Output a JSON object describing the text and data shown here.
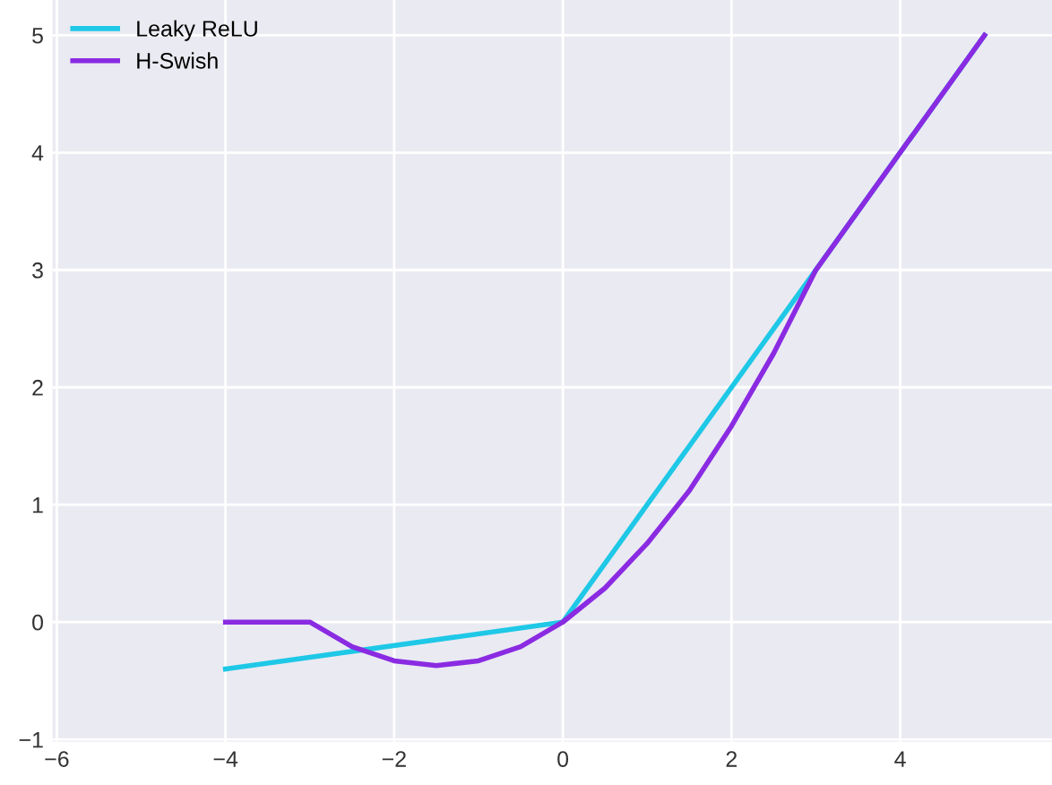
{
  "chart_data": {
    "type": "line",
    "xlim": [
      -6.05,
      5.8
    ],
    "ylim": [
      -1.02,
      5.3
    ],
    "xticks": [
      {
        "value": -6,
        "label": "−6"
      },
      {
        "value": -4,
        "label": "−4"
      },
      {
        "value": -2,
        "label": "−2"
      },
      0,
      2,
      4
    ],
    "yticks": [
      {
        "value": -1,
        "label": "−1"
      },
      0,
      1,
      2,
      3,
      4,
      5
    ],
    "grid": true,
    "legend": "top left",
    "line_style": "solid",
    "marker": "none",
    "series": [
      {
        "name": "Leaky ReLU",
        "color": "#1ec8e6",
        "x": [
          -4,
          0,
          5
        ],
        "values": [
          -0.4,
          0,
          5
        ]
      },
      {
        "name": "H-Swish",
        "color": "#8a2be2",
        "x": [
          -4,
          -3,
          -2.5,
          -2,
          -1.5,
          -1,
          -0.5,
          0,
          0.5,
          1,
          1.5,
          2,
          2.5,
          3,
          5
        ],
        "values": [
          0,
          0,
          -0.21,
          -0.33,
          -0.37,
          -0.33,
          -0.21,
          0,
          0.29,
          0.67,
          1.12,
          1.67,
          2.29,
          3,
          5
        ]
      }
    ]
  }
}
